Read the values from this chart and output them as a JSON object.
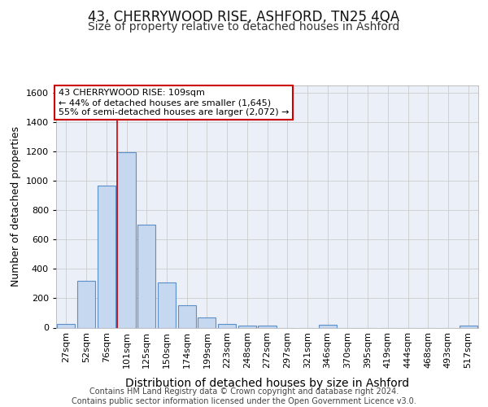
{
  "title": "43, CHERRYWOOD RISE, ASHFORD, TN25 4QA",
  "subtitle": "Size of property relative to detached houses in Ashford",
  "xlabel": "Distribution of detached houses by size in Ashford",
  "ylabel": "Number of detached properties",
  "footer_line1": "Contains HM Land Registry data © Crown copyright and database right 2024.",
  "footer_line2": "Contains public sector information licensed under the Open Government Licence v3.0.",
  "annotation_line1": "43 CHERRYWOOD RISE: 109sqm",
  "annotation_line2": "← 44% of detached houses are smaller (1,645)",
  "annotation_line3": "55% of semi-detached houses are larger (2,072) →",
  "bar_labels": [
    "27sqm",
    "52sqm",
    "76sqm",
    "101sqm",
    "125sqm",
    "150sqm",
    "174sqm",
    "199sqm",
    "223sqm",
    "248sqm",
    "272sqm",
    "297sqm",
    "321sqm",
    "346sqm",
    "370sqm",
    "395sqm",
    "419sqm",
    "444sqm",
    "468sqm",
    "493sqm",
    "517sqm"
  ],
  "bar_values": [
    25,
    320,
    970,
    1195,
    700,
    310,
    150,
    70,
    25,
    12,
    12,
    0,
    0,
    20,
    0,
    0,
    0,
    0,
    0,
    0,
    15
  ],
  "ylim": [
    0,
    1650
  ],
  "bar_color": "#c5d8f0",
  "bar_edge_color": "#5b8fc9",
  "vline_x_index": 3,
  "vline_color": "#cc0000",
  "grid_color": "#cccccc",
  "background_color": "#eaeff8",
  "annotation_box_edge": "#cc0000",
  "title_fontsize": 12,
  "subtitle_fontsize": 10,
  "tick_fontsize": 8,
  "ylabel_fontsize": 9,
  "xlabel_fontsize": 10,
  "footer_fontsize": 7
}
